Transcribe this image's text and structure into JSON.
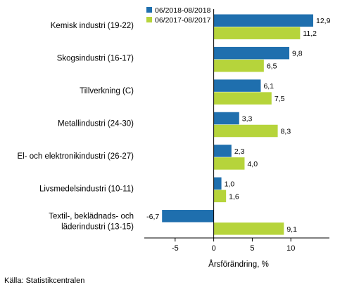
{
  "chart_data": {
    "type": "bar",
    "orientation": "horizontal",
    "categories": [
      [
        "Kemisk industri (19-22)"
      ],
      [
        "Skogsindustri (16-17)"
      ],
      [
        "Tillverkning (C)"
      ],
      [
        "Metallindustri (24-30)"
      ],
      [
        "El- och elektronikindustri (26-27)"
      ],
      [
        "Livsmedelsindustri (10-11)"
      ],
      [
        "Textil-, beklädnads- och",
        "läderindustri (13-15)"
      ]
    ],
    "series": [
      {
        "name": "06/2018-08/2018",
        "color": "#1f6fae",
        "values": [
          12.9,
          9.8,
          6.1,
          3.3,
          2.3,
          1.0,
          -6.7
        ],
        "labels": [
          "12,9",
          "9,8",
          "6,1",
          "3,3",
          "2,3",
          "1,0",
          "-6,7"
        ]
      },
      {
        "name": "06/2017-08/2017",
        "color": "#b6d43b",
        "values": [
          11.2,
          6.5,
          7.5,
          8.3,
          4.0,
          1.6,
          9.1
        ],
        "labels": [
          "11,2",
          "6,5",
          "7,5",
          "8,3",
          "4,0",
          "1,6",
          "9,1"
        ]
      }
    ],
    "xlim": [
      -9,
      15
    ],
    "xticks": [
      -5,
      0,
      5,
      10
    ],
    "xtick_labels": [
      "-5",
      "0",
      "5",
      "10"
    ],
    "xlabel": "Årsförändring, %",
    "legend_position": "top-right",
    "grid": false
  },
  "source": "Källa: Statistikcentralen"
}
